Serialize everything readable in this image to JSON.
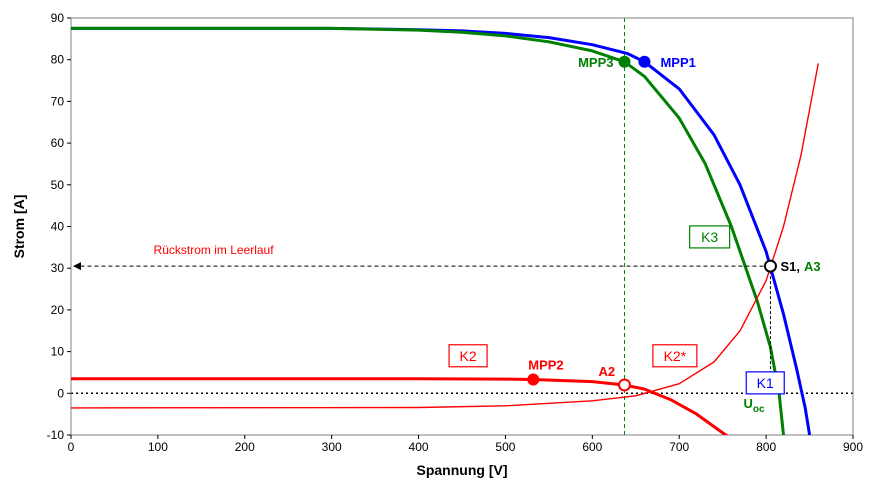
{
  "chart_data": {
    "type": "line",
    "xlabel": "Spannung [V]",
    "ylabel": "Strom [A]",
    "xlim": [
      0,
      900
    ],
    "ylim": [
      -10,
      90
    ],
    "xticks": [
      0,
      100,
      200,
      300,
      400,
      500,
      600,
      700,
      800,
      900
    ],
    "yticks": [
      -10,
      0,
      10,
      20,
      30,
      40,
      50,
      60,
      70,
      80,
      90
    ],
    "grid": false,
    "colors": {
      "K1": "#0000ff",
      "K2": "#ff0000",
      "K3": "#008000",
      "annotation": "#000000"
    },
    "series": [
      {
        "name": "K1",
        "color": "#0000ff",
        "x": [
          0,
          300,
          400,
          450,
          500,
          550,
          600,
          640,
          660,
          700,
          740,
          770,
          800,
          820,
          835,
          845,
          850
        ],
        "y": [
          87.5,
          87.5,
          87.2,
          86.9,
          86.3,
          85.3,
          83.6,
          81.5,
          79.5,
          73,
          62,
          50,
          34,
          19,
          6,
          -3.5,
          -10
        ]
      },
      {
        "name": "K3",
        "color": "#008000",
        "x": [
          0,
          300,
          400,
          450,
          500,
          550,
          600,
          637,
          660,
          700,
          730,
          760,
          790,
          805,
          815,
          820
        ],
        "y": [
          87.5,
          87.5,
          87.1,
          86.6,
          85.7,
          84.3,
          82.1,
          79.5,
          76,
          66,
          55,
          40,
          22,
          11,
          0,
          -10
        ]
      },
      {
        "name": "K2",
        "color": "#ff0000",
        "x": [
          0,
          400,
          500,
          532,
          600,
          637,
          660,
          690,
          720,
          750,
          755
        ],
        "y": [
          3.5,
          3.5,
          3.4,
          3.3,
          2.8,
          2.0,
          1.0,
          -1.5,
          -5,
          -9.5,
          -10.2
        ]
      },
      {
        "name": "K2*",
        "color": "#ff0000",
        "x": [
          0,
          400,
          500,
          600,
          650,
          700,
          740,
          770,
          800,
          820,
          840,
          860
        ],
        "y": [
          -3.5,
          -3.4,
          -3.0,
          -1.8,
          -0.6,
          2.3,
          7.5,
          15,
          27,
          40,
          57,
          79
        ]
      }
    ],
    "points": [
      {
        "label": "MPP1",
        "x": 660,
        "y": 79.5,
        "color": "#0000ff",
        "filled": true
      },
      {
        "label": "MPP3",
        "x": 637,
        "y": 79.5,
        "color": "#008000",
        "filled": true
      },
      {
        "label": "MPP2",
        "x": 532,
        "y": 3.3,
        "color": "#ff0000",
        "filled": true
      },
      {
        "label": "A2",
        "x": 637,
        "y": 2.0,
        "color": "#ff0000",
        "filled": false
      },
      {
        "label": "S1",
        "x": 805,
        "y": 30.5,
        "color": "#000000",
        "filled": false
      }
    ],
    "reference_lines": [
      {
        "kind": "vertical",
        "x": 637,
        "color": "#008000",
        "style": "dashed"
      },
      {
        "kind": "horizontal",
        "y": 0,
        "color": "#000000",
        "style": "dotted"
      }
    ],
    "annotations": {
      "rueckstrom": "Rückstrom im Leerlauf",
      "s1": "S1",
      "s1_sep": ",",
      "a3": "A3",
      "uoc_main": "U",
      "uoc_sub": "oc",
      "box_k1": "K1",
      "box_k2": "K2",
      "box_k2s": "K2*",
      "box_k3": "K3",
      "mpp1": "MPP1",
      "mpp2": "MPP2",
      "mpp3": "MPP3",
      "a2": "A2"
    }
  }
}
